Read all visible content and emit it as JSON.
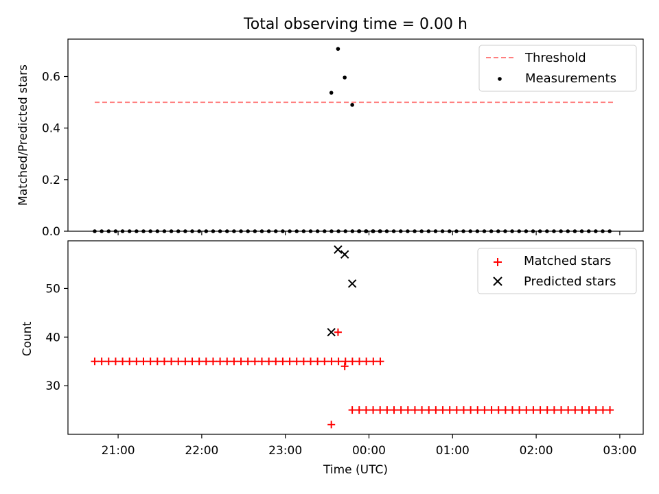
{
  "figure": {
    "title": "Total observing time = 0.00 h",
    "xlabel": "Time (UTC)",
    "x_tick_labels": [
      "21:00",
      "22:00",
      "23:00",
      "00:00",
      "01:00",
      "02:00",
      "03:00"
    ]
  },
  "chart_data": [
    {
      "type": "scatter",
      "ylabel": "Matched/Predicted stars",
      "ylim": [
        0,
        0.745
      ],
      "y_ticks": [
        "0.0",
        "0.2",
        "0.4",
        "0.6"
      ],
      "x_unit": "hours since 00:00 UTC (negative = before midnight)",
      "xlim": [
        -3.6,
        3.28
      ],
      "legend": {
        "placement": "top-right",
        "entries": [
          "Threshold",
          "Measurements"
        ]
      },
      "threshold": {
        "name": "Threshold",
        "y": 0.5,
        "x_range": [
          -3.28,
          2.95
        ],
        "color": "#ff7f7f",
        "style": "dashed"
      },
      "measurements": {
        "name": "Measurements",
        "color": "#000000",
        "zero_series_before": {
          "start": -3.28,
          "step": 0.0833,
          "count": 42
        },
        "points": [
          [
            -0.45,
            0.537
          ],
          [
            -0.37,
            0.707
          ],
          [
            -0.29,
            0.596
          ],
          [
            -0.2,
            0.49
          ]
        ],
        "zero_series_after": {
          "start": -0.12,
          "step": 0.0833,
          "count": 37
        }
      }
    },
    {
      "type": "scatter",
      "ylabel": "Count",
      "ylim": [
        20,
        59.8
      ],
      "y_ticks": [
        "30",
        "40",
        "50"
      ],
      "legend": {
        "placement": "top-right",
        "entries": [
          "Matched stars",
          "Predicted stars"
        ]
      },
      "matched": {
        "name": "Matched stars",
        "color": "#ff0000",
        "marker": "plus",
        "series_before": {
          "start": -3.28,
          "step": 0.0833,
          "count": 42,
          "value": 35
        },
        "points": [
          [
            -0.45,
            22
          ],
          [
            -0.37,
            41
          ],
          [
            -0.29,
            34
          ]
        ],
        "series_after": {
          "start": -0.2,
          "step": 0.0833,
          "count": 38,
          "value": 25
        }
      },
      "predicted": {
        "name": "Predicted stars",
        "color": "#000000",
        "marker": "x",
        "points": [
          [
            -0.45,
            41
          ],
          [
            -0.37,
            58
          ],
          [
            -0.29,
            57
          ],
          [
            -0.2,
            51
          ]
        ]
      }
    }
  ]
}
